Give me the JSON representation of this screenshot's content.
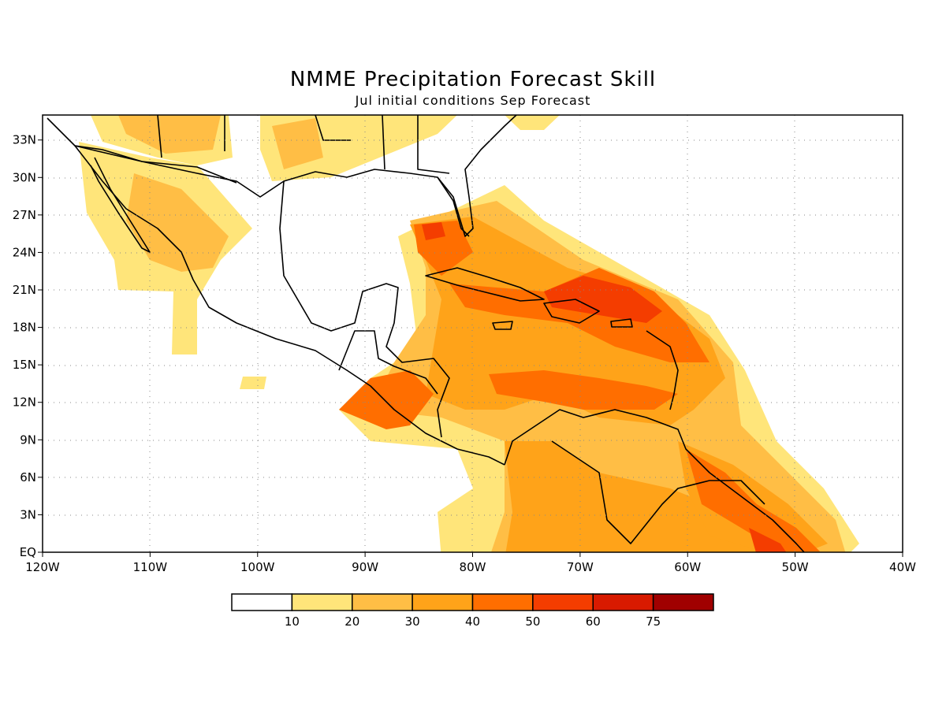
{
  "title": "NMME Precipitation Forecast Skill",
  "subtitle": "Jul initial conditions  Sep Forecast",
  "map": {
    "lon_range": [
      -120,
      -40
    ],
    "lat_range": [
      0,
      35
    ],
    "x_ticks": [
      "120W",
      "110W",
      "100W",
      "90W",
      "80W",
      "70W",
      "60W",
      "50W",
      "40W"
    ],
    "y_ticks": [
      "EQ",
      "3N",
      "6N",
      "9N",
      "12N",
      "15N",
      "18N",
      "21N",
      "24N",
      "27N",
      "30N",
      "33N"
    ],
    "grid": true,
    "variable": "precipitation forecast skill"
  },
  "colorbar": {
    "labels": [
      "10",
      "20",
      "30",
      "40",
      "50",
      "60",
      "75"
    ],
    "colors": [
      "#ffffff",
      "#ffe57a",
      "#ffbe45",
      "#ffa319",
      "#ff6e00",
      "#f43d00",
      "#d81a00",
      "#a00000"
    ]
  }
}
